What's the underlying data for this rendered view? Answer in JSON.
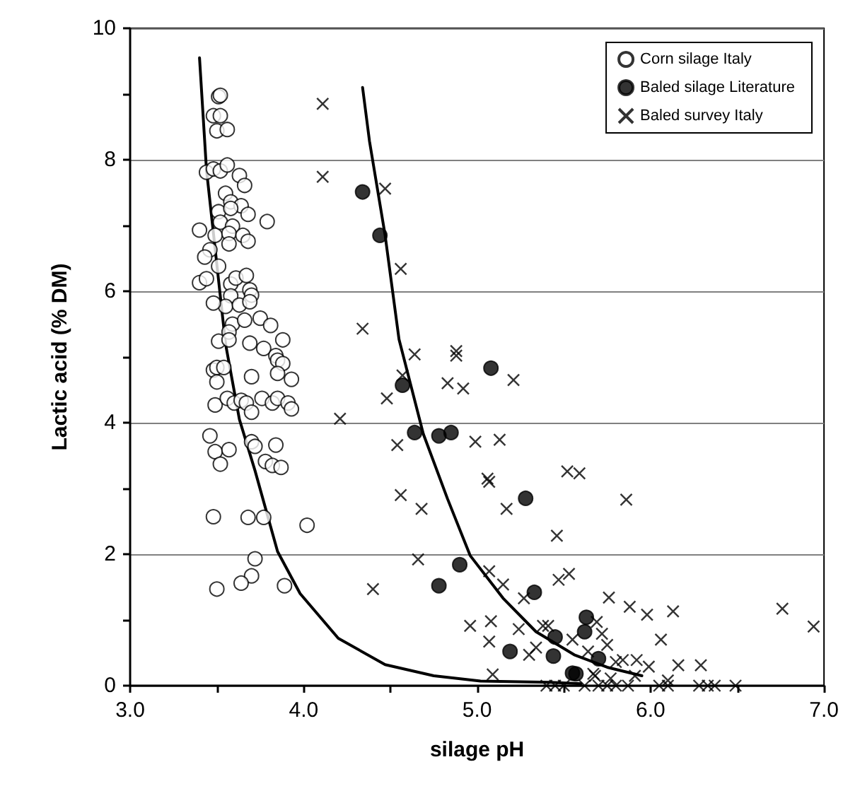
{
  "chart_data": {
    "type": "scatter",
    "xlabel": "silage pH",
    "ylabel": "Lactic acid (% DM)",
    "xlim": [
      3,
      7
    ],
    "xticks": [
      {
        "value": 3,
        "label": "3.0"
      },
      {
        "value": 3.5,
        "label": null
      },
      {
        "value": 4,
        "label": "4.0"
      },
      {
        "value": 4.5,
        "label": null
      },
      {
        "value": 5,
        "label": "5.0"
      },
      {
        "value": 5.5,
        "label": null
      },
      {
        "value": 6,
        "label": "6.0"
      },
      {
        "value": 6.5,
        "label": null
      },
      {
        "value": 7,
        "label": "7.0"
      }
    ],
    "ylim": [
      0,
      10
    ],
    "yticks": [
      0,
      {
        "value": 1,
        "label": null
      },
      2,
      {
        "value": 3,
        "label": null
      },
      4,
      {
        "value": 5,
        "label": null
      },
      6,
      {
        "value": 7,
        "label": null
      },
      8,
      {
        "value": 9,
        "label": null
      },
      10
    ],
    "grid": "y",
    "legend": "top right",
    "series": [
      {
        "name": "Corn silage Italy",
        "marker": "circle",
        "color": "#ffffff",
        "x": [
          3.51,
          3.52,
          3.48,
          3.52,
          3.5,
          3.56,
          3.44,
          3.48,
          3.52,
          3.56,
          3.63,
          3.66,
          3.55,
          3.58,
          3.64,
          3.51,
          3.58,
          3.68,
          3.79,
          3.4,
          3.52,
          3.59,
          3.49,
          3.57,
          3.65,
          3.68,
          3.57,
          3.46,
          3.43,
          3.51,
          3.4,
          3.44,
          3.58,
          3.61,
          3.67,
          3.69,
          3.7,
          3.58,
          3.55,
          3.63,
          3.48,
          3.69,
          3.59,
          3.66,
          3.75,
          3.81,
          3.57,
          3.51,
          3.57,
          3.69,
          3.77,
          3.88,
          3.84,
          3.85,
          3.88,
          3.48,
          3.5,
          3.54,
          3.5,
          3.7,
          3.85,
          3.93,
          3.49,
          3.56,
          3.6,
          3.64,
          3.67,
          3.7,
          3.76,
          3.82,
          3.85,
          3.91,
          3.93,
          3.46,
          3.49,
          3.57,
          3.52,
          3.7,
          3.72,
          3.84,
          3.78,
          3.82,
          3.87,
          3.48,
          3.68,
          3.77,
          4.02,
          3.72,
          3.7,
          3.64,
          3.5,
          3.89
        ],
        "values": [
          8.96,
          8.98,
          8.67,
          8.67,
          8.44,
          8.46,
          7.81,
          7.86,
          7.83,
          7.92,
          7.76,
          7.61,
          7.49,
          7.36,
          7.3,
          7.21,
          7.26,
          7.17,
          7.06,
          6.93,
          7.05,
          6.99,
          6.85,
          6.88,
          6.85,
          6.76,
          6.72,
          6.63,
          6.52,
          6.38,
          6.13,
          6.19,
          6.11,
          6.2,
          6.24,
          6.02,
          5.94,
          5.93,
          5.77,
          5.79,
          5.82,
          5.84,
          5.5,
          5.56,
          5.59,
          5.48,
          5.38,
          5.24,
          5.26,
          5.21,
          5.13,
          5.26,
          5.02,
          4.95,
          4.9,
          4.8,
          4.84,
          4.84,
          4.62,
          4.7,
          4.75,
          4.66,
          4.27,
          4.37,
          4.3,
          4.34,
          4.3,
          4.16,
          4.37,
          4.3,
          4.37,
          4.3,
          4.21,
          3.8,
          3.56,
          3.59,
          3.37,
          3.71,
          3.64,
          3.66,
          3.41,
          3.35,
          3.32,
          2.57,
          2.56,
          2.56,
          2.44,
          1.93,
          1.67,
          1.56,
          1.47,
          1.52
        ]
      },
      {
        "name": "Baled silage Literature",
        "marker": "circle",
        "color": "#000000",
        "x": [
          4.34,
          4.44,
          4.57,
          4.64,
          4.78,
          4.85,
          5.08,
          5.28,
          4.9,
          4.78,
          5.33,
          5.19,
          5.45,
          5.44,
          5.62,
          5.63,
          5.7,
          5.55,
          5.57
        ],
        "values": [
          7.51,
          6.85,
          4.57,
          3.85,
          3.8,
          3.85,
          4.83,
          2.85,
          1.84,
          1.52,
          1.42,
          0.52,
          0.74,
          0.45,
          0.82,
          1.04,
          0.41,
          0.19,
          0.18
        ]
      },
      {
        "name": "Baled survey Italy",
        "marker": "cross",
        "color": "#000000",
        "x": [
          4.11,
          4.11,
          4.21,
          4.47,
          4.56,
          4.34,
          4.64,
          4.88,
          4.88,
          4.57,
          4.48,
          4.83,
          4.92,
          5.21,
          4.54,
          4.99,
          5.13,
          5.06,
          5.07,
          5.52,
          5.59,
          4.56,
          4.68,
          5.17,
          5.46,
          4.66,
          4.4,
          5.07,
          5.15,
          5.47,
          5.53,
          5.27,
          5.76,
          4.96,
          5.08,
          5.07,
          5.24,
          5.3,
          5.34,
          5.38,
          5.41,
          5.55,
          5.69,
          5.72,
          5.75,
          5.64,
          5.09,
          5.67,
          5.8,
          5.77,
          5.86,
          5.88,
          5.98,
          6.13,
          6.76,
          6.94,
          6.06,
          5.84,
          5.92,
          5.99,
          6.16,
          6.29,
          5.91,
          6.1,
          5.68,
          5.4,
          5.45,
          5.5,
          5.62,
          5.7,
          5.75,
          5.8,
          5.87,
          6.05,
          6.1,
          6.28,
          6.33,
          6.37,
          6.49
        ],
        "values": [
          8.85,
          7.74,
          4.06,
          7.56,
          6.34,
          5.43,
          5.04,
          5.09,
          5.02,
          4.72,
          4.37,
          4.6,
          4.52,
          4.65,
          3.66,
          3.71,
          3.74,
          3.15,
          3.1,
          3.26,
          3.23,
          2.9,
          2.69,
          2.69,
          2.28,
          1.92,
          1.47,
          1.74,
          1.54,
          1.61,
          1.7,
          1.33,
          1.34,
          0.91,
          0.98,
          0.67,
          0.86,
          0.47,
          0.58,
          0.91,
          0.91,
          0.7,
          0.97,
          0.79,
          0.62,
          0.52,
          0.17,
          0.18,
          0.36,
          0.11,
          2.83,
          1.2,
          1.08,
          1.13,
          1.17,
          0.9,
          0.7,
          0.39,
          0.39,
          0.29,
          0.31,
          0.31,
          0.15,
          0.08,
          0.15,
          0,
          0,
          0,
          0,
          0,
          0,
          0,
          0,
          0,
          0,
          0,
          0,
          0,
          0
        ]
      },
      {
        "type": "line",
        "marker": "none",
        "color": "#000000",
        "x": [
          3.4,
          3.44,
          3.55,
          3.63,
          3.72,
          3.85,
          3.98,
          4.2,
          4.47,
          4.75,
          5.02,
          5.42,
          5.6
        ],
        "values": [
          9.55,
          7.85,
          5.2,
          4.05,
          3.27,
          2.04,
          1.4,
          0.72,
          0.32,
          0.15,
          0.07,
          0.05,
          0.03
        ]
      },
      {
        "type": "line",
        "marker": "none",
        "color": "#000000",
        "x": [
          4.34,
          4.38,
          4.47,
          4.55,
          4.69,
          4.83,
          4.96,
          5.15,
          5.34,
          5.56,
          5.75,
          5.95
        ],
        "values": [
          9.1,
          8.28,
          6.85,
          5.27,
          3.83,
          2.84,
          1.98,
          1.33,
          0.82,
          0.47,
          0.28,
          0.15
        ]
      }
    ]
  }
}
